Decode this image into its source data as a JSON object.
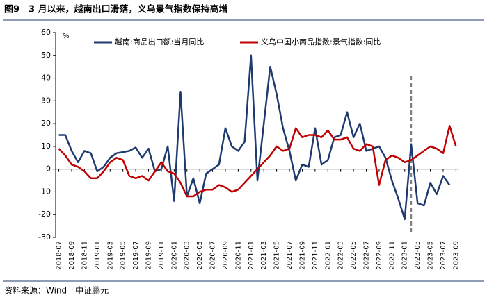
{
  "title": "图9　3 月以来，越南出口滑落，义乌景气指数保持高增",
  "source": "资料来源：Wind　中证鹏元",
  "chart_data": {
    "type": "line",
    "y_unit": "%",
    "categories": [
      "2018-07",
      null,
      "2018-09",
      null,
      "2018-11",
      null,
      "2019-01",
      null,
      "2019-03",
      null,
      "2019-05",
      null,
      "2019-07",
      null,
      "2019-09",
      null,
      "2019-11",
      null,
      "2020-01",
      null,
      "2020-03",
      null,
      "2020-05",
      null,
      "2020-07",
      null,
      "2020-09",
      null,
      "2020-11",
      null,
      "2021-01",
      null,
      "2021-03",
      null,
      "2021-05",
      null,
      "2021-07",
      null,
      "2021-09",
      null,
      "2021-11",
      null,
      "2022-01",
      null,
      "2022-03",
      null,
      "2022-05",
      null,
      "2022-07",
      null,
      "2022-09",
      null,
      "2022-11",
      null,
      "2023-01",
      null,
      "2023-03",
      null,
      "2023-05",
      null,
      "2023-07",
      null,
      "2023-09"
    ],
    "series": [
      {
        "name": "越南:商品出口额:当月同比",
        "color": "#1f3a6e",
        "values": [
          15,
          15,
          8,
          3,
          8,
          7,
          -1,
          1,
          5,
          7,
          7.5,
          8,
          9.5,
          5,
          9,
          -1,
          0,
          10,
          -14,
          34,
          -12,
          -4,
          -15,
          -2,
          0,
          2,
          18,
          10,
          8,
          12,
          50,
          -5,
          20,
          45,
          33,
          18,
          8,
          -5,
          2,
          1,
          18,
          2,
          4,
          14,
          15,
          25,
          14,
          20,
          8,
          9,
          10,
          5,
          -5,
          -13,
          -22,
          11,
          -15,
          -16,
          -6,
          -11,
          -3,
          -7,
          null
        ]
      },
      {
        "name": "义乌中国小商品指数:景气指数:同比",
        "color": "#c00000",
        "values": [
          9,
          6,
          2,
          1,
          -1,
          -4,
          -4,
          -1,
          3,
          5,
          4,
          -3,
          -4,
          -3,
          -5,
          -1,
          3,
          -1,
          -2,
          -6,
          -12,
          -12,
          -10,
          -9,
          -9,
          -7,
          -8,
          -10,
          -9,
          -6,
          -3,
          0,
          3,
          6,
          10,
          8,
          9,
          18,
          14,
          15,
          15,
          14,
          17,
          13,
          13,
          14,
          9,
          8,
          11,
          10,
          -7,
          4,
          6,
          5,
          3,
          4,
          6,
          8,
          10,
          9,
          7,
          19,
          10
        ]
      }
    ],
    "ylim": [
      -30,
      60
    ],
    "yticks": [
      -30,
      -20,
      -10,
      0,
      10,
      20,
      30,
      40,
      50,
      60
    ],
    "vertical_line": {
      "category_index": 55,
      "color": "#808080",
      "style": "dashed"
    }
  }
}
